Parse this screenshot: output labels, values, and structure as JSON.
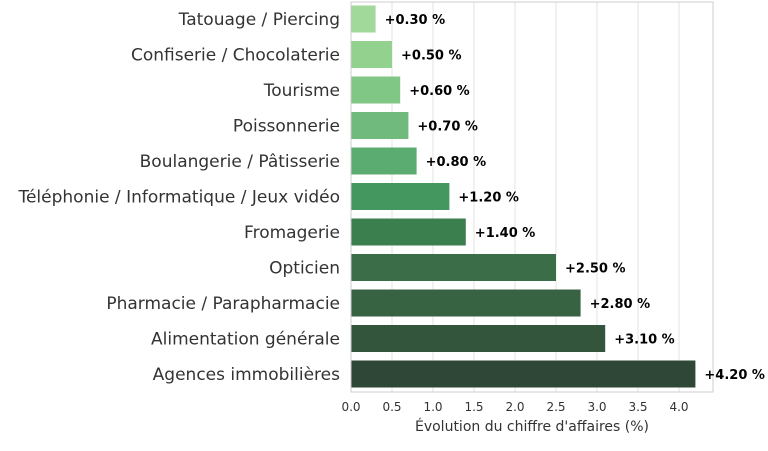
{
  "chart_data": {
    "type": "bar",
    "orientation": "horizontal",
    "categories": [
      "Tatouage / Piercing",
      "Confiserie / Chocolaterie",
      "Tourisme",
      "Poissonnerie",
      "Boulangerie / Pâtisserie",
      "Téléphonie / Informatique / Jeux vidéo",
      "Fromagerie",
      "Opticien",
      "Pharmacie / Parapharmacie",
      "Alimentation générale",
      "Agences immobilières"
    ],
    "values": [
      0.3,
      0.5,
      0.6,
      0.7,
      0.8,
      1.2,
      1.4,
      2.5,
      2.8,
      3.1,
      4.2
    ],
    "value_labels": [
      "+0.30 %",
      "+0.50 %",
      "+0.60 %",
      "+0.70 %",
      "+0.80 %",
      "+1.20 %",
      "+1.40 %",
      "+2.50 %",
      "+2.80 %",
      "+3.10 %",
      "+4.20 %"
    ],
    "colors": [
      "#a1d99b",
      "#93d18f",
      "#80c685",
      "#6fba7c",
      "#5aac70",
      "#44985f",
      "#3c7f4f",
      "#3b6e48",
      "#386343",
      "#32553c",
      "#2f4736"
    ],
    "xlabel": "Évolution du chiffre d'affaires (%)",
    "xticks": [
      "0.0",
      "0.5",
      "1.0",
      "1.5",
      "2.0",
      "2.5",
      "3.0",
      "3.5",
      "4.0"
    ],
    "xlim": [
      0,
      4.4
    ],
    "grid": "vertical",
    "legend": "none"
  }
}
